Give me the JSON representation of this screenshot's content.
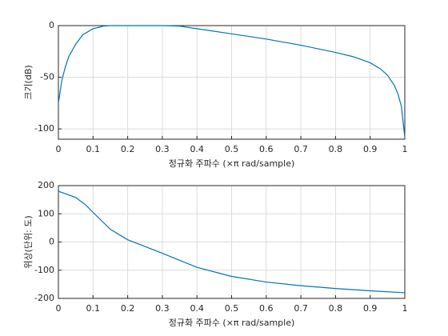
{
  "chart_data": [
    {
      "type": "line",
      "xlabel": "정규화 주파수 (×π rad/sample)",
      "ylabel": "크기(dB)",
      "x": [
        0,
        0.01,
        0.02,
        0.03,
        0.05,
        0.07,
        0.1,
        0.13,
        0.15,
        0.2,
        0.25,
        0.3,
        0.35,
        0.4,
        0.5,
        0.6,
        0.7,
        0.8,
        0.85,
        0.9,
        0.93,
        0.95,
        0.97,
        0.98,
        0.99,
        1.0
      ],
      "series": [
        {
          "color": "#0072bd",
          "values": [
            -75,
            -53,
            -40,
            -30,
            -18,
            -9,
            -3,
            -0.5,
            0,
            0,
            0,
            0,
            -0.5,
            -3,
            -8,
            -13,
            -19,
            -26,
            -30,
            -36,
            -42,
            -48,
            -58,
            -66,
            -78,
            -108
          ]
        }
      ],
      "xlim": [
        0,
        1
      ],
      "xticks": [
        0,
        0.1,
        0.2,
        0.3,
        0.4,
        0.5,
        0.6,
        0.7,
        0.8,
        0.9,
        1
      ],
      "ylim": [
        -110,
        0
      ],
      "yticks": [
        -100,
        -50,
        0
      ],
      "grid": true
    },
    {
      "type": "line",
      "xlabel": "정규화 주파수 (×π rad/sample)",
      "ylabel": "위상(단위: 도)",
      "x": [
        0,
        0.05,
        0.08,
        0.1,
        0.15,
        0.2,
        0.3,
        0.4,
        0.5,
        0.6,
        0.7,
        0.8,
        0.9,
        1.0
      ],
      "series": [
        {
          "color": "#0072bd",
          "values": [
            180,
            158,
            130,
            105,
            45,
            8,
            -40,
            -90,
            -122,
            -142,
            -155,
            -165,
            -173,
            -180
          ]
        }
      ],
      "xlim": [
        0,
        1
      ],
      "xticks": [
        0,
        0.1,
        0.2,
        0.3,
        0.4,
        0.5,
        0.6,
        0.7,
        0.8,
        0.9,
        1
      ],
      "ylim": [
        -200,
        200
      ],
      "yticks": [
        -200,
        -100,
        0,
        100,
        200
      ],
      "grid": true
    }
  ]
}
